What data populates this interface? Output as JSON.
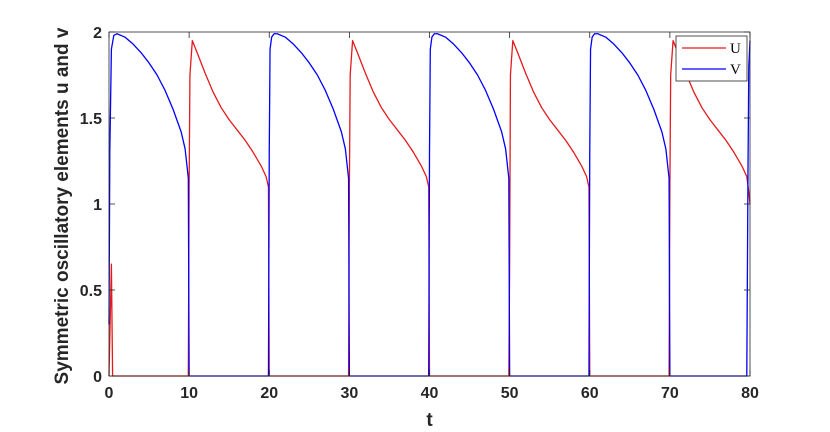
{
  "chart_data": {
    "type": "line",
    "title": "",
    "xlabel": "t",
    "ylabel": "Symmetric oscillatory elements u and v",
    "xlim": [
      0,
      80
    ],
    "ylim": [
      0,
      2
    ],
    "x_ticks": [
      "0",
      "10",
      "20",
      "30",
      "40",
      "50",
      "60",
      "70",
      "80"
    ],
    "y_ticks": [
      "0",
      "0.5",
      "1",
      "1.5",
      "2"
    ],
    "grid": false,
    "legend_position": "top-right",
    "series": [
      {
        "name": "U",
        "color": "#e41a1c",
        "description": "active on [10,20],[30,40],[50,60],[70,80]; jumps to ~1.95 then decays to ~1.05; zero otherwise",
        "x": [
          0,
          0.3,
          0.45,
          9.9,
          10.0,
          10.1,
          10.4,
          11.0,
          12.0,
          13.0,
          14.0,
          15.0,
          16.0,
          17.0,
          18.0,
          19.0,
          19.6,
          19.9,
          20.0,
          20.1,
          29.9,
          30.0,
          30.1,
          30.4,
          31.0,
          32.0,
          33.0,
          34.0,
          35.0,
          36.0,
          37.0,
          38.0,
          39.0,
          39.6,
          39.9,
          40.0,
          40.1,
          49.9,
          50.0,
          50.1,
          50.4,
          51.0,
          52.0,
          53.0,
          54.0,
          55.0,
          56.0,
          57.0,
          58.0,
          59.0,
          59.6,
          59.9,
          60.0,
          60.1,
          69.9,
          70.0,
          70.1,
          70.4,
          71.0,
          72.0,
          73.0,
          74.0,
          75.0,
          76.0,
          77.0,
          78.0,
          79.0,
          79.6,
          79.9,
          80.0
        ],
        "y": [
          0,
          0.65,
          0,
          0,
          1.1,
          1.75,
          1.95,
          1.88,
          1.76,
          1.65,
          1.56,
          1.49,
          1.43,
          1.37,
          1.3,
          1.22,
          1.16,
          1.1,
          0,
          0,
          0,
          1.1,
          1.75,
          1.95,
          1.88,
          1.76,
          1.65,
          1.56,
          1.49,
          1.43,
          1.37,
          1.3,
          1.22,
          1.16,
          1.1,
          0,
          0,
          0,
          0.65,
          1.75,
          1.95,
          1.88,
          1.76,
          1.65,
          1.56,
          1.49,
          1.43,
          1.37,
          1.3,
          1.22,
          1.16,
          1.1,
          0,
          0,
          0,
          1.1,
          1.75,
          1.95,
          1.88,
          1.76,
          1.65,
          1.56,
          1.49,
          1.43,
          1.37,
          1.3,
          1.22,
          1.16,
          1.05,
          1.0
        ]
      },
      {
        "name": "V",
        "color": "#0000ff",
        "description": "active on [0,10],[20,30],[40,50],[60,70]; jumps to ~1.99 then decays concavely to ~1.1; zero otherwise",
        "x": [
          0,
          0.1,
          0.3,
          0.6,
          1.0,
          2.0,
          3.0,
          4.0,
          5.0,
          6.0,
          7.0,
          8.0,
          9.0,
          9.5,
          9.9,
          10.0,
          19.9,
          20.0,
          20.1,
          20.3,
          20.6,
          21.0,
          22.0,
          23.0,
          24.0,
          25.0,
          26.0,
          27.0,
          28.0,
          29.0,
          29.5,
          29.9,
          30.0,
          39.9,
          40.0,
          40.1,
          40.3,
          40.6,
          41.0,
          42.0,
          43.0,
          44.0,
          45.0,
          46.0,
          47.0,
          48.0,
          49.0,
          49.5,
          49.9,
          50.0,
          59.9,
          60.0,
          60.1,
          60.3,
          60.6,
          61.0,
          62.0,
          63.0,
          64.0,
          65.0,
          66.0,
          67.0,
          68.0,
          69.0,
          69.5,
          69.9,
          70.0,
          79.6,
          79.75,
          79.85,
          80.0
        ],
        "y": [
          0.3,
          1.3,
          1.9,
          1.98,
          1.99,
          1.97,
          1.93,
          1.88,
          1.82,
          1.75,
          1.66,
          1.55,
          1.42,
          1.32,
          1.15,
          0,
          0,
          1.3,
          1.9,
          1.97,
          1.99,
          1.99,
          1.97,
          1.93,
          1.88,
          1.82,
          1.75,
          1.66,
          1.55,
          1.42,
          1.32,
          1.15,
          0,
          0,
          1.3,
          1.9,
          1.97,
          1.99,
          1.99,
          1.97,
          1.93,
          1.88,
          1.82,
          1.75,
          1.66,
          1.55,
          1.42,
          1.32,
          1.15,
          0,
          0,
          1.3,
          1.9,
          1.97,
          1.99,
          1.99,
          1.97,
          1.93,
          1.88,
          1.82,
          1.75,
          1.66,
          1.55,
          1.42,
          1.32,
          1.15,
          0,
          0,
          1.2,
          1.8,
          1.95
        ]
      }
    ]
  }
}
